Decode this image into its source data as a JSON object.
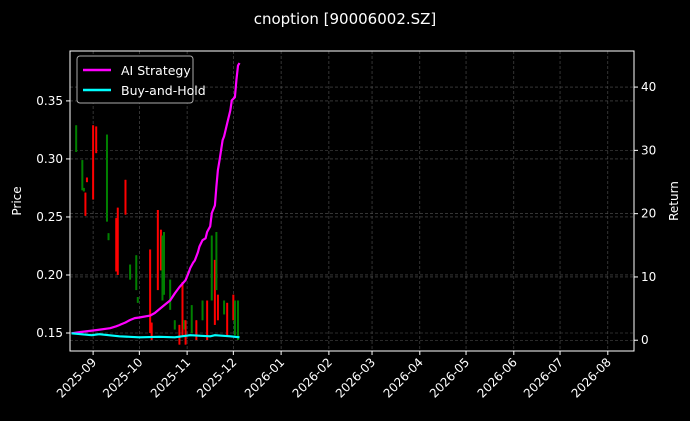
{
  "chart_data": {
    "type": "candlestick+line",
    "title": "cnoption [90006002.SZ]",
    "ylabel_left": "Price",
    "ylabel_right": "Return",
    "xlim": [
      "2025-08-17",
      "2026-08-18"
    ],
    "ylim_left": [
      0.1345,
      0.393
    ],
    "ylim_right": [
      -1.7,
      45.7
    ],
    "x_ticks": [
      "2025-09",
      "2025-10",
      "2025-11",
      "2025-12",
      "2026-01",
      "2026-02",
      "2026-03",
      "2026-04",
      "2026-05",
      "2026-06",
      "2026-07",
      "2026-08"
    ],
    "y_ticks_left": [
      "0.15",
      "0.20",
      "0.25",
      "0.30",
      "0.35"
    ],
    "y_ticks_right": [
      "0",
      "10",
      "20",
      "30",
      "40"
    ],
    "grid": true,
    "legend_position": "top-left",
    "colors": {
      "up": "#008000",
      "down": "#ff0000",
      "ai": "#ff00ff",
      "bh": "#00ffff",
      "background": "#000000",
      "grid": "#555555"
    },
    "candles": [
      {
        "date": "2025-08-21",
        "open": 0.306,
        "high": 0.329,
        "low": 0.306,
        "close": 0.329
      },
      {
        "date": "2025-08-25",
        "open": 0.273,
        "high": 0.299,
        "low": 0.273,
        "close": 0.299
      },
      {
        "date": "2025-08-26",
        "open": 0.272,
        "high": 0.275,
        "low": 0.272,
        "close": 0.275
      },
      {
        "date": "2025-08-27",
        "open": 0.271,
        "high": 0.271,
        "low": 0.251,
        "close": 0.251
      },
      {
        "date": "2025-08-28",
        "open": 0.284,
        "high": 0.284,
        "low": 0.28,
        "close": 0.28
      },
      {
        "date": "2025-09-01",
        "open": 0.329,
        "high": 0.329,
        "low": 0.265,
        "close": 0.265
      },
      {
        "date": "2025-09-03",
        "open": 0.328,
        "high": 0.328,
        "low": 0.305,
        "close": 0.305
      },
      {
        "date": "2025-09-10",
        "open": 0.246,
        "high": 0.321,
        "low": 0.246,
        "close": 0.321
      },
      {
        "date": "2025-09-11",
        "open": 0.23,
        "high": 0.236,
        "low": 0.23,
        "close": 0.236
      },
      {
        "date": "2025-09-16",
        "open": 0.249,
        "high": 0.249,
        "low": 0.203,
        "close": 0.203
      },
      {
        "date": "2025-09-17",
        "open": 0.258,
        "high": 0.258,
        "low": 0.2,
        "close": 0.2
      },
      {
        "date": "2025-09-22",
        "open": 0.282,
        "high": 0.282,
        "low": 0.252,
        "close": 0.252
      },
      {
        "date": "2025-09-25",
        "open": 0.196,
        "high": 0.209,
        "low": 0.196,
        "close": 0.209
      },
      {
        "date": "2025-09-29",
        "open": 0.187,
        "high": 0.217,
        "low": 0.187,
        "close": 0.217
      },
      {
        "date": "2025-09-30",
        "open": 0.176,
        "high": 0.181,
        "low": 0.176,
        "close": 0.181
      },
      {
        "date": "2025-10-08",
        "open": 0.222,
        "high": 0.222,
        "low": 0.15,
        "close": 0.15
      },
      {
        "date": "2025-10-09",
        "open": 0.159,
        "high": 0.159,
        "low": 0.144,
        "close": 0.144
      },
      {
        "date": "2025-10-13",
        "open": 0.256,
        "high": 0.256,
        "low": 0.187,
        "close": 0.187
      },
      {
        "date": "2025-10-15",
        "open": 0.239,
        "high": 0.239,
        "low": 0.204,
        "close": 0.204
      },
      {
        "date": "2025-10-16",
        "open": 0.178,
        "high": 0.234,
        "low": 0.178,
        "close": 0.234
      },
      {
        "date": "2025-10-17",
        "open": 0.183,
        "high": 0.237,
        "low": 0.183,
        "close": 0.237
      },
      {
        "date": "2025-10-21",
        "open": 0.17,
        "high": 0.196,
        "low": 0.17,
        "close": 0.196
      },
      {
        "date": "2025-10-24",
        "open": 0.153,
        "high": 0.161,
        "low": 0.153,
        "close": 0.161
      },
      {
        "date": "2025-10-27",
        "open": 0.157,
        "high": 0.157,
        "low": 0.14,
        "close": 0.14
      },
      {
        "date": "2025-10-29",
        "open": 0.194,
        "high": 0.194,
        "low": 0.148,
        "close": 0.148
      },
      {
        "date": "2025-10-30",
        "open": 0.153,
        "high": 0.161,
        "low": 0.153,
        "close": 0.161
      },
      {
        "date": "2025-10-31",
        "open": 0.161,
        "high": 0.161,
        "low": 0.14,
        "close": 0.14
      },
      {
        "date": "2025-11-04",
        "open": 0.15,
        "high": 0.174,
        "low": 0.15,
        "close": 0.174
      },
      {
        "date": "2025-11-07",
        "open": 0.161,
        "high": 0.161,
        "low": 0.144,
        "close": 0.144
      },
      {
        "date": "2025-11-11",
        "open": 0.161,
        "high": 0.178,
        "low": 0.161,
        "close": 0.178
      },
      {
        "date": "2025-11-14",
        "open": 0.178,
        "high": 0.178,
        "low": 0.144,
        "close": 0.144
      },
      {
        "date": "2025-11-17",
        "open": 0.178,
        "high": 0.234,
        "low": 0.178,
        "close": 0.234
      },
      {
        "date": "2025-11-19",
        "open": 0.213,
        "high": 0.213,
        "low": 0.157,
        "close": 0.157
      },
      {
        "date": "2025-11-20",
        "open": 0.187,
        "high": 0.237,
        "low": 0.187,
        "close": 0.237
      },
      {
        "date": "2025-11-21",
        "open": 0.183,
        "high": 0.183,
        "low": 0.161,
        "close": 0.161
      },
      {
        "date": "2025-11-25",
        "open": 0.166,
        "high": 0.178,
        "low": 0.166,
        "close": 0.178
      },
      {
        "date": "2025-11-27",
        "open": 0.176,
        "high": 0.176,
        "low": 0.148,
        "close": 0.148
      },
      {
        "date": "2025-12-01",
        "open": 0.183,
        "high": 0.183,
        "low": 0.161,
        "close": 0.161
      },
      {
        "date": "2025-12-02",
        "open": 0.148,
        "high": 0.178,
        "low": 0.148,
        "close": 0.178
      },
      {
        "date": "2025-12-04",
        "open": 0.144,
        "high": 0.178,
        "low": 0.144,
        "close": 0.178
      }
    ],
    "series": [
      {
        "name": "AI Strategy",
        "axis": "right",
        "points": [
          [
            "2025-08-18",
            1.1
          ],
          [
            "2025-08-24",
            1.3
          ],
          [
            "2025-09-03",
            1.6
          ],
          [
            "2025-09-12",
            1.9
          ],
          [
            "2025-09-16",
            2.2
          ],
          [
            "2025-09-18",
            2.4
          ],
          [
            "2025-09-19",
            2.5
          ],
          [
            "2025-09-22",
            2.8
          ],
          [
            "2025-09-25",
            3.2
          ],
          [
            "2025-09-28",
            3.5
          ],
          [
            "2025-10-01",
            3.6
          ],
          [
            "2025-10-08",
            3.9
          ],
          [
            "2025-10-11",
            4.3
          ],
          [
            "2025-10-13",
            4.7
          ],
          [
            "2025-10-17",
            5.5
          ],
          [
            "2025-10-21",
            6.3
          ],
          [
            "2025-10-24",
            7.4
          ],
          [
            "2025-10-27",
            8.4
          ],
          [
            "2025-10-31",
            9.5
          ],
          [
            "2025-11-02",
            10.7
          ],
          [
            "2025-11-03",
            11.4
          ],
          [
            "2025-11-05",
            12.3
          ],
          [
            "2025-11-06",
            12.6
          ],
          [
            "2025-11-08",
            13.9
          ],
          [
            "2025-11-09",
            14.8
          ],
          [
            "2025-11-11",
            15.8
          ],
          [
            "2025-11-13",
            16.1
          ],
          [
            "2025-11-14",
            17.1
          ],
          [
            "2025-11-16",
            18.0
          ],
          [
            "2025-11-17",
            20.1
          ],
          [
            "2025-11-19",
            21.3
          ],
          [
            "2025-11-20",
            24.3
          ],
          [
            "2025-11-21",
            26.9
          ],
          [
            "2025-11-22",
            28.4
          ],
          [
            "2025-11-24",
            31.6
          ],
          [
            "2025-11-25",
            32.2
          ],
          [
            "2025-11-27",
            34.3
          ],
          [
            "2025-11-29",
            36.3
          ],
          [
            "2025-11-30",
            37.9
          ],
          [
            "2025-12-02",
            38.4
          ],
          [
            "2025-12-03",
            41.1
          ],
          [
            "2025-12-04",
            43.4
          ],
          [
            "2025-12-05",
            43.8
          ]
        ]
      },
      {
        "name": "Buy-and-Hold",
        "axis": "right",
        "points": [
          [
            "2025-08-18",
            1.1
          ],
          [
            "2025-08-31",
            0.8
          ],
          [
            "2025-09-05",
            0.95
          ],
          [
            "2025-09-18",
            0.63
          ],
          [
            "2025-10-01",
            0.47
          ],
          [
            "2025-10-14",
            0.55
          ],
          [
            "2025-10-24",
            0.47
          ],
          [
            "2025-11-03",
            0.8
          ],
          [
            "2025-11-16",
            0.63
          ],
          [
            "2025-11-19",
            0.8
          ],
          [
            "2025-11-29",
            0.63
          ],
          [
            "2025-12-05",
            0.47
          ]
        ]
      }
    ]
  }
}
